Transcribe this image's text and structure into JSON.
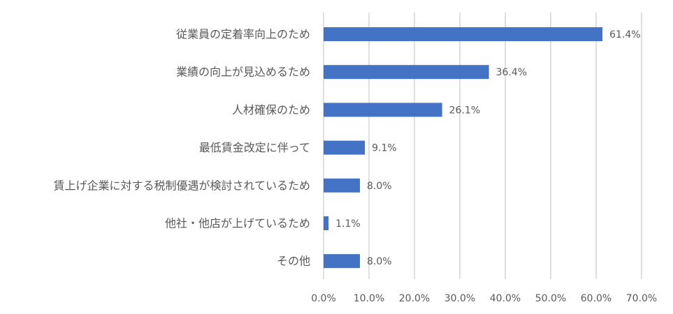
{
  "chart_data": {
    "type": "bar",
    "orientation": "horizontal",
    "categories": [
      "従業員の定着率向上のため",
      "業績の向上が見込めるため",
      "人材確保のため",
      "最低賃金改定に伴って",
      "賃上げ企業に対する税制優遇が検討されているため",
      "他社・他店が上げているため",
      "その他"
    ],
    "values": [
      61.4,
      36.4,
      26.1,
      9.1,
      8.0,
      1.1,
      8.0
    ],
    "data_labels": [
      "61.4%",
      "36.4%",
      "26.1%",
      "9.1%",
      "8.0%",
      "1.1%",
      "8.0%"
    ],
    "xlim": [
      0,
      70
    ],
    "x_ticks": [
      0,
      10,
      20,
      30,
      40,
      50,
      60,
      70
    ],
    "x_tick_labels": [
      "0.0%",
      "10.0%",
      "20.0%",
      "30.0%",
      "40.0%",
      "50.0%",
      "60.0%",
      "70.0%"
    ],
    "grid": "vertical",
    "legend": "none",
    "title": "",
    "xlabel": "",
    "ylabel": "",
    "colors": {
      "bar": "#4472C4",
      "grid": "#BFBFBF",
      "text": "#595959"
    }
  }
}
